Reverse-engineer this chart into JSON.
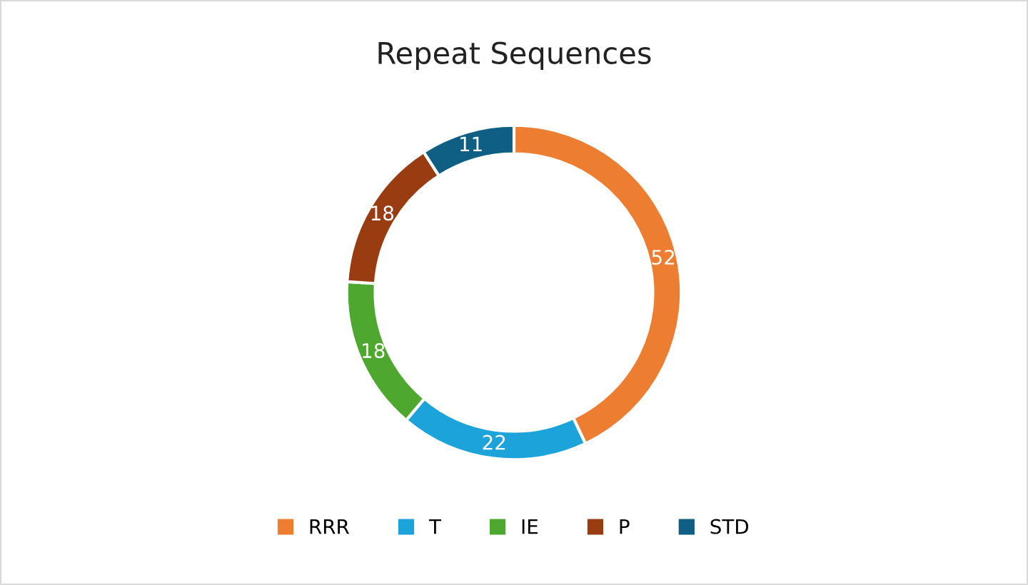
{
  "chart_data": {
    "type": "donut",
    "title": "Repeat Sequences",
    "categories": [
      "RRR",
      "T",
      "IE",
      "P",
      "STD"
    ],
    "values": [
      52,
      22,
      18,
      18,
      11
    ],
    "colors": [
      "#ed7d31",
      "#1ca3da",
      "#4ea72e",
      "#9a3c12",
      "#0f5f85"
    ],
    "data_labels": true,
    "legend": "bottom"
  }
}
